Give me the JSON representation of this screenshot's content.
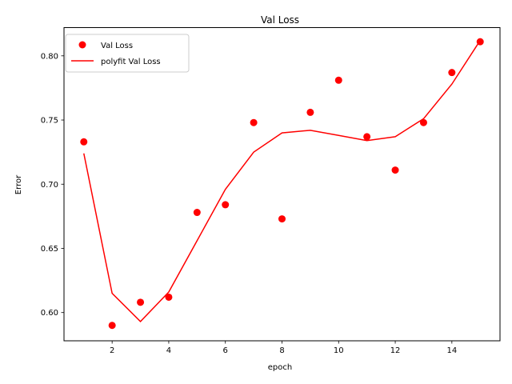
{
  "chart_data": {
    "type": "scatter",
    "title": "Val Loss",
    "xlabel": "epoch",
    "ylabel": "Error",
    "xlim": [
      0.3,
      15.7
    ],
    "ylim": [
      0.578,
      0.822
    ],
    "xticks": [
      2,
      4,
      6,
      8,
      10,
      12,
      14
    ],
    "yticks": [
      0.6,
      0.65,
      0.7,
      0.75,
      0.8
    ],
    "xtick_labels": [
      "2",
      "4",
      "6",
      "8",
      "10",
      "12",
      "14"
    ],
    "ytick_labels": [
      "0.60",
      "0.65",
      "0.70",
      "0.75",
      "0.80"
    ],
    "grid": false,
    "legend_position": "upper-left",
    "series": [
      {
        "name": "Val Loss",
        "kind": "scatter",
        "color": "#ff0000",
        "x": [
          1,
          2,
          3,
          4,
          5,
          6,
          7,
          8,
          9,
          10,
          11,
          12,
          13,
          14,
          15
        ],
        "y": [
          0.733,
          0.59,
          0.608,
          0.612,
          0.678,
          0.684,
          0.748,
          0.673,
          0.756,
          0.781,
          0.737,
          0.711,
          0.748,
          0.787,
          0.811
        ]
      },
      {
        "name": "polyfit Val Loss",
        "kind": "line",
        "color": "#ff0000",
        "x": [
          1,
          2,
          3,
          4,
          5,
          6,
          7,
          8,
          9,
          10,
          11,
          12,
          13,
          14,
          15
        ],
        "y": [
          0.724,
          0.615,
          0.593,
          0.616,
          0.656,
          0.696,
          0.725,
          0.74,
          0.742,
          0.738,
          0.734,
          0.737,
          0.751,
          0.778,
          0.812
        ]
      }
    ]
  }
}
